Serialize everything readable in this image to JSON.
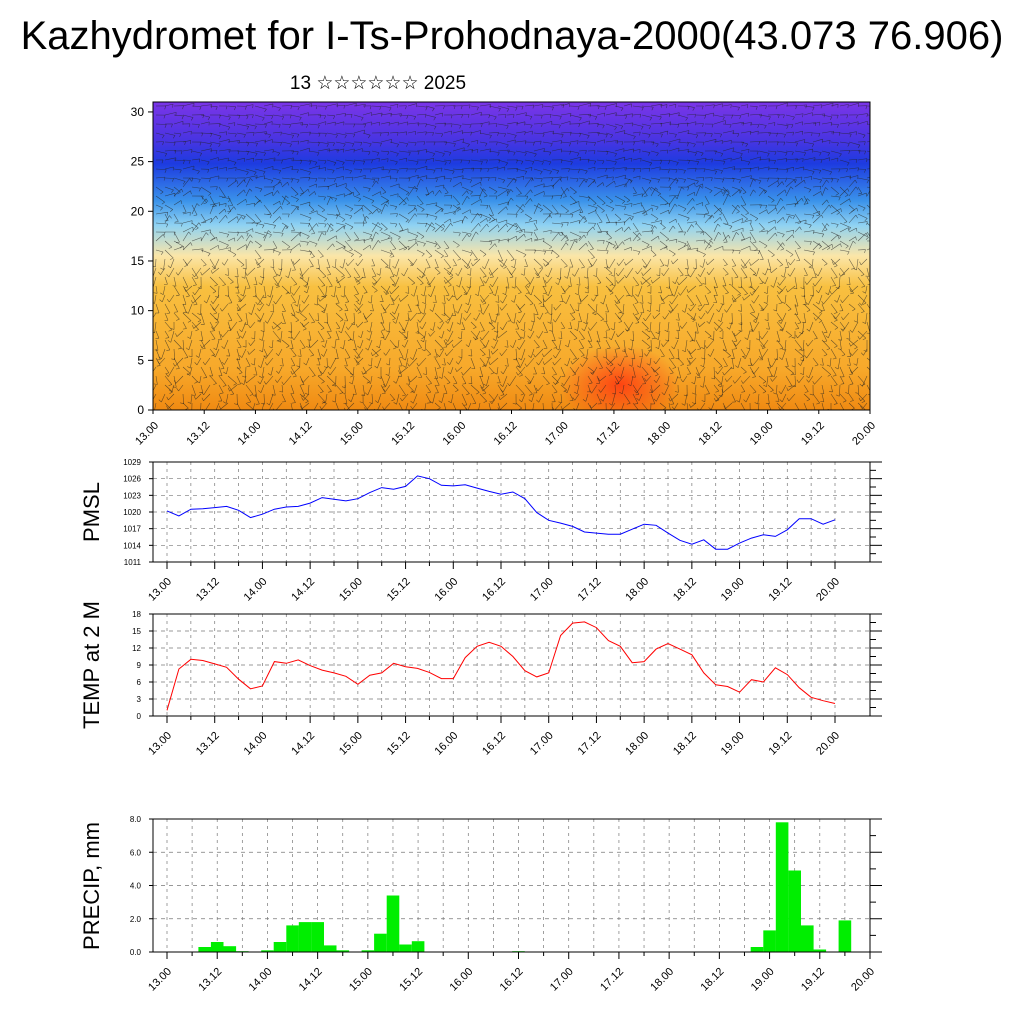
{
  "title": "Kazhydromet for I-Ts-Prohodnaya-2000(43.073 76.906)",
  "subtitle": "13 ☆☆☆☆☆☆ 2025",
  "time_ticks": [
    "13.00",
    "13.12",
    "14.00",
    "14.12",
    "15.00",
    "15.12",
    "16.00",
    "16.12",
    "17.00",
    "17.12",
    "18.00",
    "18.12",
    "19.00",
    "19.12",
    "20.00"
  ],
  "chart_data": [
    {
      "type": "heatmap",
      "title": "",
      "xlabel": "",
      "ylabel": "",
      "ylim": [
        0,
        31
      ],
      "ytick_labels": [
        "0",
        "5",
        "10",
        "15",
        "20",
        "25",
        "30"
      ],
      "x": [
        "13.00",
        "13.12",
        "14.00",
        "14.12",
        "15.00",
        "15.12",
        "16.00",
        "16.12",
        "17.00",
        "17.12",
        "18.00",
        "18.12",
        "19.00",
        "19.12",
        "20.00"
      ],
      "layers": [
        {
          "level_bottom": 0,
          "level_top": 4,
          "color": "#f08a12"
        },
        {
          "level_bottom": 4,
          "level_top": 13,
          "color": "#f7b22c"
        },
        {
          "level_bottom": 13,
          "level_top": 16,
          "color": "#fbe6a8"
        },
        {
          "level_bottom": 16,
          "level_top": 21,
          "color": "#6ec3f0"
        },
        {
          "level_bottom": 21,
          "level_top": 26,
          "color": "#1d3be0"
        },
        {
          "level_bottom": 26,
          "level_top": 31,
          "color": "#7b35e8"
        }
      ],
      "note_overlay": "wind barbs"
    },
    {
      "type": "line",
      "ylabel": "PMSL",
      "ylim": [
        1011,
        1029
      ],
      "ytick_labels": [
        "1011",
        "1014",
        "1017",
        "1020",
        "1023",
        "1026",
        "1029"
      ],
      "series": [
        {
          "color": "#0000ff",
          "x": [
            0,
            3,
            6,
            9,
            12,
            15,
            18,
            21,
            24,
            27,
            30,
            33,
            36,
            39,
            42,
            45,
            48,
            51,
            54,
            57,
            60,
            63,
            66,
            69,
            72,
            75,
            78,
            81,
            84,
            87,
            90,
            93,
            96,
            99,
            102,
            105,
            108,
            111,
            114,
            117,
            120,
            123,
            126,
            129,
            132,
            135,
            138,
            141,
            144,
            147,
            150,
            153,
            156,
            159,
            162,
            165,
            168
          ],
          "values": [
            1020.2,
            1019.3,
            1020.5,
            1020.6,
            1020.8,
            1021.0,
            1020.3,
            1019.0,
            1019.6,
            1020.5,
            1020.9,
            1021.0,
            1021.6,
            1022.6,
            1022.3,
            1022.0,
            1022.4,
            1023.5,
            1024.4,
            1024.1,
            1024.6,
            1026.5,
            1026.0,
            1024.8,
            1024.7,
            1024.9,
            1024.3,
            1023.7,
            1023.2,
            1023.6,
            1022.4,
            1019.9,
            1018.5,
            1018.0,
            1017.4,
            1016.4,
            1016.2,
            1016.0,
            1016.0,
            1016.9,
            1017.8,
            1017.6,
            1016.2,
            1014.9,
            1014.2,
            1015.0,
            1013.3,
            1013.3,
            1014.4,
            1015.3,
            1015.9,
            1015.6,
            1016.8,
            1018.8,
            1018.8,
            1017.8,
            1018.6
          ]
        }
      ]
    },
    {
      "type": "line",
      "ylabel": "TEMP at 2 M",
      "ylim": [
        0,
        18
      ],
      "ytick_labels": [
        "0",
        "3",
        "6",
        "9",
        "12",
        "15",
        "18"
      ],
      "series": [
        {
          "color": "#ff0000",
          "x": [
            0,
            3,
            6,
            9,
            12,
            15,
            18,
            21,
            24,
            27,
            30,
            33,
            36,
            39,
            42,
            45,
            48,
            51,
            54,
            57,
            60,
            63,
            66,
            69,
            72,
            75,
            78,
            81,
            84,
            87,
            90,
            93,
            96,
            99,
            102,
            105,
            108,
            111,
            114,
            117,
            120,
            123,
            126,
            129,
            132,
            135,
            138,
            141,
            144,
            147,
            150,
            153,
            156,
            159,
            162,
            165,
            168
          ],
          "values": [
            1.0,
            8.3,
            10.0,
            9.8,
            9.2,
            8.6,
            6.5,
            4.8,
            5.3,
            9.6,
            9.3,
            9.9,
            8.9,
            8.1,
            7.6,
            7.0,
            5.6,
            7.2,
            7.6,
            9.3,
            8.7,
            8.4,
            7.7,
            6.6,
            6.6,
            10.3,
            12.3,
            13.0,
            12.3,
            10.5,
            8.0,
            6.9,
            7.6,
            14.2,
            16.4,
            16.6,
            15.6,
            13.3,
            12.3,
            9.4,
            9.6,
            11.8,
            12.8,
            11.8,
            10.8,
            7.6,
            5.5,
            5.2,
            4.2,
            6.4,
            6.0,
            8.5,
            7.3,
            5.0,
            3.3,
            2.7,
            2.2
          ]
        }
      ]
    },
    {
      "type": "bar",
      "ylabel": "PRECIP, mm",
      "ylim": [
        0,
        8
      ],
      "ytick_labels": [
        "0.0",
        "2.0",
        "4.0",
        "6.0",
        "8.0"
      ],
      "bar_color": "#00ee00",
      "x": [
        9,
        12,
        15,
        18,
        21,
        24,
        27,
        30,
        33,
        36,
        39,
        42,
        45,
        48,
        51,
        54,
        57,
        60,
        63,
        66,
        69,
        72,
        75,
        78,
        81,
        84,
        87,
        90,
        93,
        96,
        99,
        102,
        105,
        108,
        111,
        114,
        117,
        120,
        123,
        126,
        129,
        132,
        135,
        138,
        141,
        144,
        147,
        150,
        153,
        156,
        159,
        162,
        165
      ],
      "values": [
        0.3,
        0.6,
        0.35,
        0.05,
        0,
        0.1,
        0.6,
        1.6,
        1.8,
        1.8,
        0.4,
        0.1,
        0,
        0.1,
        1.1,
        3.4,
        0.45,
        0.65,
        0,
        0,
        0,
        0,
        0,
        0,
        0,
        0.05,
        0,
        0,
        0,
        0,
        0,
        0,
        0,
        0,
        0,
        0,
        0,
        0,
        0,
        0,
        0,
        0,
        0,
        0,
        0.3,
        1.3,
        7.8,
        4.9,
        1.6,
        0.15,
        0,
        1.9,
        0
      ]
    }
  ]
}
